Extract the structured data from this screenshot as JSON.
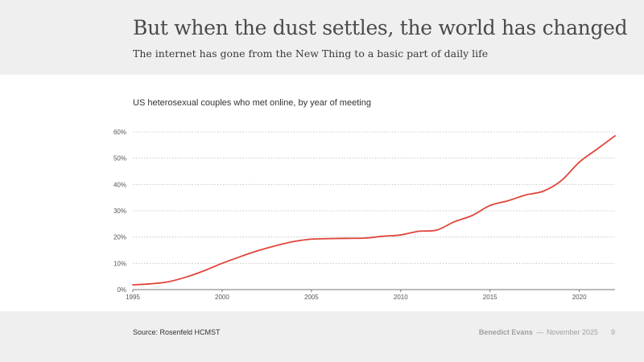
{
  "slide": {
    "title": "But when the dust settles, the world has changed",
    "subtitle": "The internet has gone from the New Thing to a basic part of daily life",
    "source": "Source: Rosenfeld HCMST",
    "author": "Benedict Evans",
    "separator": "—",
    "date": "November 2025",
    "page_number": "9"
  },
  "colors": {
    "line": "#e0453b",
    "grid": "#bdbdbd",
    "axis": "#777777",
    "tick_text": "#555555"
  },
  "chart_data": {
    "type": "line",
    "title": "US heterosexual couples who met online, by year of meeting",
    "xlabel": "",
    "ylabel": "",
    "xlim": [
      1995,
      2022
    ],
    "ylim": [
      0,
      60
    ],
    "xticks": [
      1995,
      2000,
      2005,
      2010,
      2015,
      2020
    ],
    "yticks": [
      0,
      10,
      20,
      30,
      40,
      50,
      60
    ],
    "ytick_labels": [
      "0%",
      "10%",
      "20%",
      "30%",
      "40%",
      "50%",
      "60%"
    ],
    "grid": true,
    "legend": "none",
    "series": [
      {
        "x": [
          1995,
          1996,
          1997,
          1998,
          1999,
          2000,
          2001,
          2002,
          2003,
          2004,
          2005,
          2006,
          2007,
          2008,
          2009,
          2010,
          2011,
          2012,
          2013,
          2014,
          2015,
          2016,
          2017,
          2018,
          2019,
          2020,
          2021,
          2022
        ],
        "y": [
          1.8,
          2.2,
          3.0,
          4.8,
          7.2,
          10.0,
          12.5,
          14.8,
          16.7,
          18.3,
          19.2,
          19.4,
          19.5,
          19.6,
          20.3,
          20.8,
          22.2,
          22.6,
          25.8,
          28.2,
          32.0,
          33.8,
          36.0,
          37.5,
          41.5,
          48.5,
          53.5,
          58.5
        ]
      }
    ]
  }
}
